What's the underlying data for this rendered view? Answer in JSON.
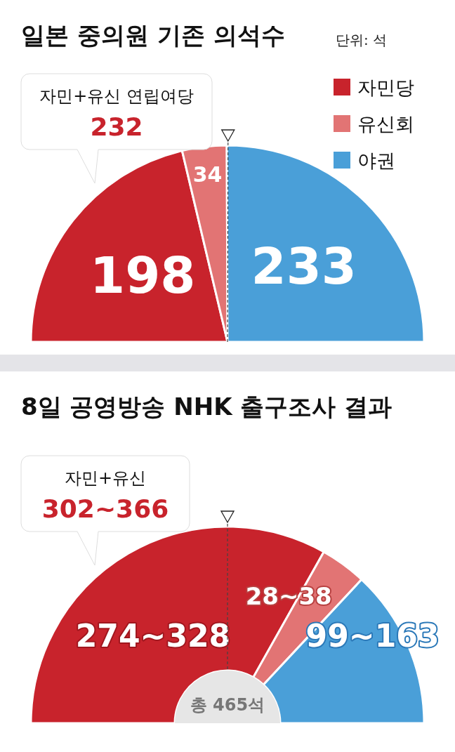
{
  "chart_data": [
    {
      "type": "pie",
      "title": "일본 중의원 기존 의석수",
      "subtitle": "단위: 석",
      "categories": [
        "자민당",
        "유신회",
        "야권"
      ],
      "values": [
        198,
        34,
        233
      ],
      "colors": [
        "#c8232c",
        "#e27474",
        "#4a9fd8"
      ],
      "data_labels": true,
      "legend": "top right",
      "needle": "야권",
      "annotations": [
        "자민+유신 연립여당",
        "232"
      ]
    },
    {
      "type": "donut",
      "title": "8일 공영방송 NHK 출구조사 결과",
      "categories": [
        null,
        null,
        null
      ],
      "values": [
        66.3,
        7.6,
        26.1
      ],
      "colors": [
        "#c8232c",
        "#e27474",
        "#4a9fd8"
      ],
      "annotations": [
        "자민+유신",
        "302~366",
        "총 465석",
        "274~328",
        "28~38",
        "99~163"
      ]
    }
  ]
}
